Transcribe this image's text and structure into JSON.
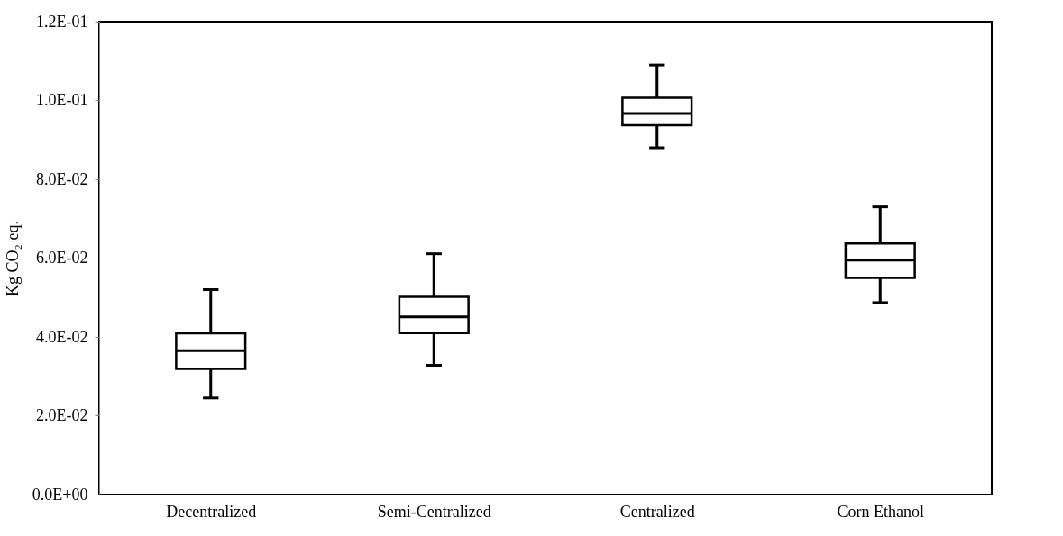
{
  "chart_data": {
    "type": "box",
    "ylabel": "Kg CO₂ eq.",
    "categories": [
      "Decentralized",
      "Semi-Centralized",
      "Centralized",
      "Corn Ethanol"
    ],
    "boxes": [
      {
        "low": 0.0245,
        "q1": 0.0319,
        "median": 0.0365,
        "q3": 0.0409,
        "high": 0.052
      },
      {
        "low": 0.0328,
        "q1": 0.041,
        "median": 0.0451,
        "q3": 0.0502,
        "high": 0.0611
      },
      {
        "low": 0.088,
        "q1": 0.0937,
        "median": 0.0967,
        "q3": 0.1007,
        "high": 0.109
      },
      {
        "low": 0.0487,
        "q1": 0.055,
        "median": 0.0595,
        "q3": 0.0637,
        "high": 0.073
      }
    ],
    "ylim": [
      0,
      0.12
    ],
    "yticks": [
      {
        "value": 0,
        "label": "0.0E+00"
      },
      {
        "value": 0.02,
        "label": "2.0E-02"
      },
      {
        "value": 0.04,
        "label": "4.0E-02"
      },
      {
        "value": 0.06,
        "label": "6.0E-02"
      },
      {
        "value": 0.08,
        "label": "8.0E-02"
      },
      {
        "value": 0.1,
        "label": "1.0E-01"
      },
      {
        "value": 0.12,
        "label": "1.2E-01"
      }
    ],
    "grid": false
  }
}
